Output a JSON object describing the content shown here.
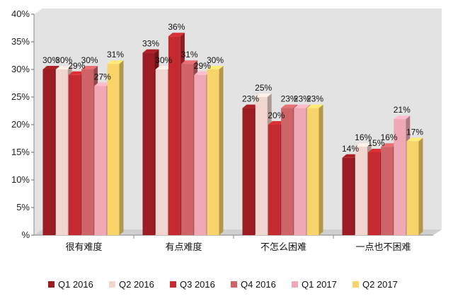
{
  "chart_data": {
    "type": "bar",
    "title": "",
    "xlabel": "",
    "ylabel": "",
    "ylim": [
      0,
      40
    ],
    "yticks": [
      0,
      5,
      10,
      15,
      20,
      25,
      30,
      35,
      40
    ],
    "ytick_labels": [
      "%",
      "5%",
      "10%",
      "15%",
      "20%",
      "25%",
      "30%",
      "35%",
      "40%"
    ],
    "grid": false,
    "legend_position": "bottom",
    "categories": [
      "很有难度",
      "有点难度",
      "不怎么困难",
      "一点也不困难"
    ],
    "series": [
      {
        "name": "Q1 2016",
        "color": "#9b1c22",
        "values": [
          30,
          33,
          23,
          14
        ],
        "labels": [
          "30%",
          "33%",
          "23%",
          "14%"
        ]
      },
      {
        "name": "Q2 2016",
        "color": "#f0d6cf",
        "values": [
          30,
          30,
          25,
          16
        ],
        "labels": [
          "30%",
          "30%",
          "25%",
          "16%"
        ]
      },
      {
        "name": "Q3 2016",
        "color": "#c42a30",
        "values": [
          29,
          36,
          20,
          15
        ],
        "labels": [
          "29%",
          "36%",
          "20%",
          "15%"
        ]
      },
      {
        "name": "Q4 2016",
        "color": "#cf6468",
        "values": [
          30,
          31,
          23,
          16
        ],
        "labels": [
          "30%",
          "31%",
          "23%",
          "16%"
        ]
      },
      {
        "name": "Q1 2017",
        "color": "#f0a8b4",
        "values": [
          27,
          29,
          23,
          21
        ],
        "labels": [
          "27%",
          "29%",
          "23%",
          "21%"
        ]
      },
      {
        "name": "Q2 2017",
        "color": "#f8d36a",
        "values": [
          31,
          30,
          23,
          17
        ],
        "labels": [
          "31%",
          "30%",
          "23%",
          "17%"
        ]
      }
    ]
  }
}
